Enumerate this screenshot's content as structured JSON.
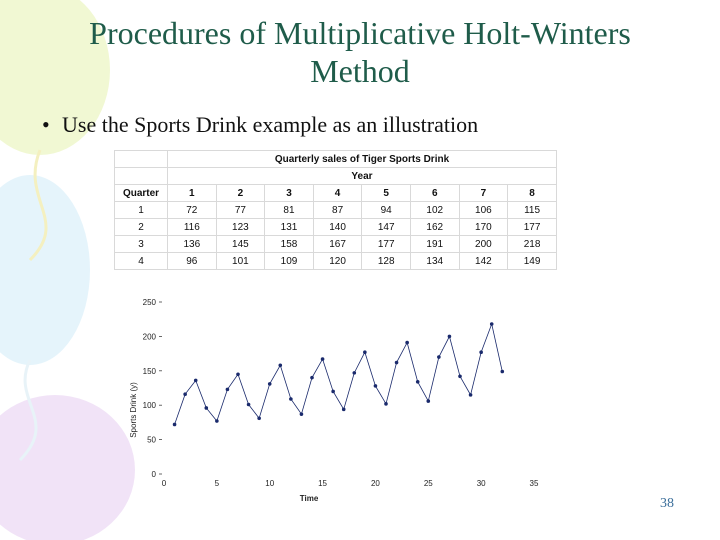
{
  "slide": {
    "title_line1": "Procedures of Multiplicative Holt-Winters",
    "title_line2": "Method",
    "bullet": "Use the Sports Drink example as an illustration",
    "page_number": "38"
  },
  "table": {
    "caption": "Quarterly sales of Tiger Sports Drink",
    "group_header": "Year",
    "row_header": "Quarter",
    "years": [
      "1",
      "2",
      "3",
      "4",
      "5",
      "6",
      "7",
      "8"
    ],
    "rows": [
      {
        "quarter": "1",
        "values": [
          "72",
          "77",
          "81",
          "87",
          "94",
          "102",
          "106",
          "115"
        ]
      },
      {
        "quarter": "2",
        "values": [
          "116",
          "123",
          "131",
          "140",
          "147",
          "162",
          "170",
          "177"
        ]
      },
      {
        "quarter": "3",
        "values": [
          "136",
          "145",
          "158",
          "167",
          "177",
          "191",
          "200",
          "218"
        ]
      },
      {
        "quarter": "4",
        "values": [
          "96",
          "101",
          "109",
          "120",
          "128",
          "134",
          "142",
          "149"
        ]
      }
    ]
  },
  "chart_data": {
    "type": "line",
    "xlabel": "Time",
    "ylabel": "Sports Drink (y)",
    "xlim": [
      0,
      35
    ],
    "ylim": [
      0,
      250
    ],
    "xticks": [
      0,
      5,
      10,
      15,
      20,
      25,
      30,
      35
    ],
    "yticks": [
      0,
      50,
      100,
      150,
      200,
      250
    ],
    "grid": false,
    "x": [
      1,
      2,
      3,
      4,
      5,
      6,
      7,
      8,
      9,
      10,
      11,
      12,
      13,
      14,
      15,
      16,
      17,
      18,
      19,
      20,
      21,
      22,
      23,
      24,
      25,
      26,
      27,
      28,
      29,
      30,
      31,
      32
    ],
    "y": [
      72,
      116,
      136,
      96,
      77,
      123,
      145,
      101,
      81,
      131,
      158,
      109,
      87,
      140,
      167,
      120,
      94,
      147,
      177,
      128,
      102,
      162,
      191,
      134,
      106,
      170,
      200,
      142,
      115,
      177,
      218,
      149
    ],
    "colors": {
      "line": "#1a2a6c",
      "marker": "#1a2a6c"
    }
  }
}
